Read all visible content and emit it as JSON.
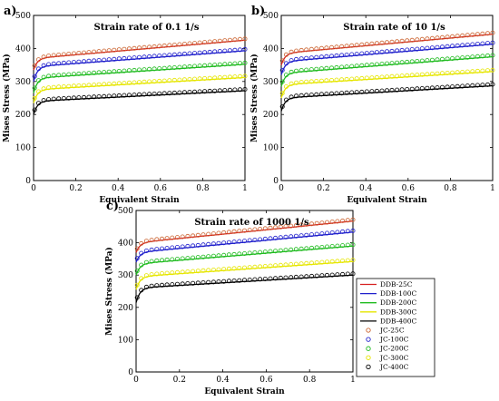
{
  "figure": {
    "legend": {
      "entries": [
        {
          "label": "DDB-25C",
          "color": "#d62020",
          "kind": "line"
        },
        {
          "label": "DDB-100C",
          "color": "#2020cc",
          "kind": "line"
        },
        {
          "label": "DDB-200C",
          "color": "#20bb20",
          "kind": "line"
        },
        {
          "label": "DDB-300C",
          "color": "#e6e600",
          "kind": "line"
        },
        {
          "label": "DDB-400C",
          "color": "#000000",
          "kind": "line"
        },
        {
          "label": "JC-25C",
          "color": "#cc6633",
          "kind": "marker"
        },
        {
          "label": "JC-100C",
          "color": "#2020cc",
          "kind": "marker"
        },
        {
          "label": "JC-200C",
          "color": "#20bb20",
          "kind": "marker"
        },
        {
          "label": "JC-300C",
          "color": "#e6e600",
          "kind": "marker"
        },
        {
          "label": "JC-400C",
          "color": "#000000",
          "kind": "marker"
        }
      ],
      "placement": "right-of-panel-c"
    }
  },
  "chart_data": [
    {
      "type": "line",
      "panel_label": "a)",
      "title": "Strain rate of 0.1 1/s",
      "xlabel": "Equivalent Strain",
      "ylabel": "Mises Stress (MPa)",
      "xlim": [
        0,
        1
      ],
      "ylim": [
        0,
        500
      ],
      "xticks": [
        "0",
        "0.2",
        "0.4",
        "0.6",
        "0.8",
        "1"
      ],
      "yticks": [
        "0",
        "100",
        "200",
        "300",
        "400",
        "500"
      ],
      "series": [
        {
          "color": "#d62020",
          "marker_color": "#cc6633",
          "y0": 335,
          "sat": 370,
          "end": 425
        },
        {
          "color": "#2020cc",
          "marker_color": "#2020cc",
          "y0": 300,
          "sat": 345,
          "end": 393
        },
        {
          "color": "#20bb20",
          "marker_color": "#20bb20",
          "y0": 265,
          "sat": 310,
          "end": 352
        },
        {
          "color": "#e6e600",
          "marker_color": "#e6e600",
          "y0": 235,
          "sat": 275,
          "end": 312
        },
        {
          "color": "#000000",
          "marker_color": "#000000",
          "y0": 200,
          "sat": 240,
          "end": 272
        }
      ]
    },
    {
      "type": "line",
      "panel_label": "b)",
      "title": "Strain rate of 10 1/s",
      "xlabel": "Equivalent Strain",
      "ylabel": "Mises Stress (MPa)",
      "xlim": [
        0,
        1
      ],
      "ylim": [
        0,
        500
      ],
      "xticks": [
        "0",
        "0.2",
        "0.4",
        "0.6",
        "0.8",
        "1"
      ],
      "yticks": [
        "0",
        "100",
        "200",
        "300",
        "400",
        "500"
      ],
      "series": [
        {
          "color": "#d62020",
          "marker_color": "#cc6633",
          "y0": 350,
          "sat": 385,
          "end": 443
        },
        {
          "color": "#2020cc",
          "marker_color": "#2020cc",
          "y0": 320,
          "sat": 360,
          "end": 413
        },
        {
          "color": "#20bb20",
          "marker_color": "#20bb20",
          "y0": 285,
          "sat": 325,
          "end": 375
        },
        {
          "color": "#e6e600",
          "marker_color": "#e6e600",
          "y0": 250,
          "sat": 290,
          "end": 330
        },
        {
          "color": "#000000",
          "marker_color": "#000000",
          "y0": 210,
          "sat": 250,
          "end": 287
        }
      ]
    },
    {
      "type": "line",
      "panel_label": "c)",
      "title": "Strain rate of 1000 1/s",
      "xlabel": "Equivalent Strain",
      "ylabel": "Mises Stress (MPa)",
      "xlim": [
        0,
        1
      ],
      "ylim": [
        0,
        500
      ],
      "xticks": [
        "0",
        "0.2",
        "0.4",
        "0.6",
        "0.8",
        "1"
      ],
      "yticks": [
        "0",
        "100",
        "200",
        "300",
        "400",
        "500"
      ],
      "series": [
        {
          "color": "#d62020",
          "marker_color": "#cc6633",
          "y0": 370,
          "sat": 400,
          "end": 467
        },
        {
          "color": "#2020cc",
          "marker_color": "#2020cc",
          "y0": 340,
          "sat": 370,
          "end": 433
        },
        {
          "color": "#20bb20",
          "marker_color": "#20bb20",
          "y0": 300,
          "sat": 335,
          "end": 390
        },
        {
          "color": "#e6e600",
          "marker_color": "#e6e600",
          "y0": 255,
          "sat": 295,
          "end": 342
        },
        {
          "color": "#000000",
          "marker_color": "#000000",
          "y0": 215,
          "sat": 260,
          "end": 300
        }
      ]
    }
  ]
}
